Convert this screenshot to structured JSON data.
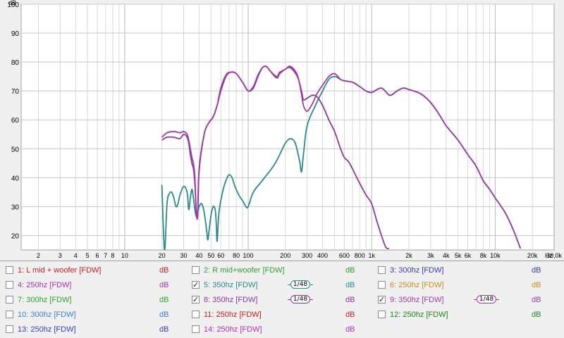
{
  "chart_data": {
    "type": "line",
    "ylabel": "dB",
    "xunit": "Hz",
    "xscale": "log",
    "xlim": [
      1.45,
      30000
    ],
    "ylim": [
      15,
      100
    ],
    "yticks": [
      20,
      30,
      40,
      50,
      60,
      70,
      80,
      90,
      100
    ],
    "xticks": [
      {
        "v": 2,
        "label": "2"
      },
      {
        "v": 3,
        "label": "3"
      },
      {
        "v": 4,
        "label": "4"
      },
      {
        "v": 5,
        "label": "5"
      },
      {
        "v": 6,
        "label": "6"
      },
      {
        "v": 7,
        "label": "7"
      },
      {
        "v": 8,
        "label": "8"
      },
      {
        "v": 10,
        "label": "10"
      },
      {
        "v": 20,
        "label": "20"
      },
      {
        "v": 30,
        "label": "30"
      },
      {
        "v": 40,
        "label": "40"
      },
      {
        "v": 50,
        "label": "50"
      },
      {
        "v": 60,
        "label": "60"
      },
      {
        "v": 80,
        "label": "80"
      },
      {
        "v": 100,
        "label": "100"
      },
      {
        "v": 200,
        "label": "200"
      },
      {
        "v": 300,
        "label": "300"
      },
      {
        "v": 400,
        "label": "400"
      },
      {
        "v": 600,
        "label": "600"
      },
      {
        "v": 800,
        "label": "800"
      },
      {
        "v": 1000,
        "label": "1k"
      },
      {
        "v": 2000,
        "label": "2k"
      },
      {
        "v": 3000,
        "label": "3k"
      },
      {
        "v": 4000,
        "label": "4k"
      },
      {
        "v": 5000,
        "label": "5k"
      },
      {
        "v": 6000,
        "label": "6k"
      },
      {
        "v": 8000,
        "label": "8k"
      },
      {
        "v": 10000,
        "label": "10k"
      },
      {
        "v": 20000,
        "label": "20k"
      },
      {
        "v": 30000,
        "label": "30,0k"
      }
    ],
    "xlast_label": "Hz",
    "grid": true,
    "series": [
      {
        "name": "5: 350hz [FDW]",
        "color": "#2a8a8a",
        "points": [
          [
            20,
            37.5
          ],
          [
            21,
            15
          ],
          [
            22,
            31
          ],
          [
            23,
            34.5
          ],
          [
            24,
            35
          ],
          [
            25,
            33
          ],
          [
            26,
            30
          ],
          [
            27,
            31
          ],
          [
            28,
            34
          ],
          [
            30,
            37
          ],
          [
            32,
            35
          ],
          [
            33,
            29
          ],
          [
            34,
            33
          ],
          [
            35,
            36
          ],
          [
            36,
            33
          ],
          [
            37,
            29
          ],
          [
            38,
            26.5
          ],
          [
            39,
            28
          ],
          [
            40,
            30
          ],
          [
            42,
            31
          ],
          [
            44,
            28
          ],
          [
            46,
            22
          ],
          [
            47,
            18.5
          ],
          [
            48,
            21
          ],
          [
            50,
            27
          ],
          [
            52,
            30
          ],
          [
            54,
            29
          ],
          [
            55,
            25
          ],
          [
            56,
            18
          ],
          [
            58,
            28
          ],
          [
            62,
            35
          ],
          [
            66,
            39
          ],
          [
            70,
            41
          ],
          [
            74,
            40
          ],
          [
            78,
            37
          ],
          [
            84,
            34
          ],
          [
            90,
            32
          ],
          [
            96,
            30
          ],
          [
            100,
            30
          ],
          [
            110,
            35
          ],
          [
            130,
            39
          ],
          [
            160,
            44
          ],
          [
            180,
            48
          ],
          [
            200,
            52
          ],
          [
            220,
            53.5
          ],
          [
            240,
            52
          ],
          [
            260,
            46
          ],
          [
            270,
            42
          ],
          [
            280,
            48
          ],
          [
            300,
            58
          ],
          [
            350,
            65
          ],
          [
            400,
            70
          ],
          [
            450,
            74
          ],
          [
            500,
            75
          ],
          [
            560,
            74
          ],
          [
            600,
            73.5
          ],
          [
            700,
            73
          ],
          [
            800,
            71.5
          ],
          [
            900,
            70
          ],
          [
            1000,
            69.5
          ],
          [
            1200,
            71
          ],
          [
            1400,
            68.5
          ],
          [
            1600,
            70
          ],
          [
            1800,
            71
          ],
          [
            2000,
            70.5
          ],
          [
            2500,
            69
          ],
          [
            3000,
            66
          ],
          [
            3500,
            62
          ],
          [
            4000,
            58
          ],
          [
            5000,
            53
          ],
          [
            6000,
            48
          ],
          [
            7000,
            44
          ],
          [
            8000,
            39
          ],
          [
            9000,
            36
          ],
          [
            10000,
            33
          ],
          [
            12000,
            28
          ],
          [
            14000,
            22
          ],
          [
            16000,
            15.5
          ]
        ]
      },
      {
        "name": "8: 350hz [FDW]",
        "color": "#8a3a9a",
        "points": [
          [
            20,
            53
          ],
          [
            22,
            54
          ],
          [
            25,
            54
          ],
          [
            28,
            53.5
          ],
          [
            30,
            55
          ],
          [
            32,
            54
          ],
          [
            33,
            52
          ],
          [
            34,
            48
          ],
          [
            35,
            45
          ],
          [
            36,
            43
          ],
          [
            37,
            38
          ],
          [
            38,
            28
          ],
          [
            39,
            27
          ],
          [
            40,
            42
          ],
          [
            44,
            55
          ],
          [
            48,
            59
          ],
          [
            52,
            61
          ],
          [
            56,
            65
          ],
          [
            60,
            70
          ],
          [
            66,
            75
          ],
          [
            72,
            76.5
          ],
          [
            80,
            76
          ],
          [
            90,
            73
          ],
          [
            100,
            70
          ],
          [
            110,
            71
          ],
          [
            120,
            75
          ],
          [
            130,
            78
          ],
          [
            140,
            78.5
          ],
          [
            150,
            77
          ],
          [
            170,
            74.5
          ],
          [
            180,
            76
          ],
          [
            200,
            77.5
          ],
          [
            220,
            78
          ],
          [
            250,
            75
          ],
          [
            270,
            70
          ],
          [
            280,
            67
          ],
          [
            300,
            67.5
          ],
          [
            330,
            68.5
          ],
          [
            360,
            68
          ],
          [
            400,
            65
          ],
          [
            450,
            60
          ],
          [
            500,
            56
          ],
          [
            560,
            50
          ],
          [
            600,
            47
          ],
          [
            650,
            45.5
          ],
          [
            700,
            43
          ],
          [
            800,
            38
          ],
          [
            900,
            34
          ],
          [
            1000,
            31
          ],
          [
            1100,
            25
          ],
          [
            1200,
            20
          ],
          [
            1300,
            16
          ],
          [
            1380,
            15.5
          ]
        ]
      },
      {
        "name": "9: 350hz [FDW]",
        "color": "#a03aa8",
        "points": [
          [
            20,
            54
          ],
          [
            22,
            55.5
          ],
          [
            25,
            56
          ],
          [
            28,
            55.5
          ],
          [
            30,
            56
          ],
          [
            32,
            55
          ],
          [
            33,
            53
          ],
          [
            34,
            50
          ],
          [
            35,
            47
          ],
          [
            36,
            45
          ],
          [
            37,
            40
          ],
          [
            38,
            28
          ],
          [
            39,
            27
          ],
          [
            40,
            43
          ],
          [
            44,
            55
          ],
          [
            48,
            59
          ],
          [
            52,
            61
          ],
          [
            56,
            65
          ],
          [
            60,
            71
          ],
          [
            66,
            75.5
          ],
          [
            72,
            76.5
          ],
          [
            80,
            76
          ],
          [
            90,
            73
          ],
          [
            100,
            70
          ],
          [
            110,
            71.5
          ],
          [
            120,
            75.5
          ],
          [
            130,
            78
          ],
          [
            140,
            78.5
          ],
          [
            150,
            77
          ],
          [
            170,
            75
          ],
          [
            180,
            76.5
          ],
          [
            200,
            77.5
          ],
          [
            220,
            78.5
          ],
          [
            250,
            75.5
          ],
          [
            270,
            69
          ],
          [
            280,
            65
          ],
          [
            300,
            63
          ],
          [
            330,
            65.5
          ],
          [
            360,
            69
          ],
          [
            400,
            72
          ],
          [
            450,
            75
          ],
          [
            500,
            76
          ],
          [
            560,
            74
          ],
          [
            600,
            73.5
          ],
          [
            700,
            73
          ],
          [
            800,
            71.5
          ],
          [
            900,
            70
          ],
          [
            1000,
            69.5
          ],
          [
            1200,
            71
          ],
          [
            1400,
            68.5
          ],
          [
            1600,
            70
          ],
          [
            1800,
            71
          ],
          [
            2000,
            70.5
          ],
          [
            2500,
            69
          ],
          [
            3000,
            66
          ],
          [
            3500,
            62
          ],
          [
            4000,
            58
          ],
          [
            5000,
            53
          ],
          [
            6000,
            48
          ],
          [
            7000,
            44
          ],
          [
            8000,
            39
          ],
          [
            9000,
            36
          ],
          [
            10000,
            33
          ],
          [
            12000,
            28
          ],
          [
            14000,
            22
          ],
          [
            16000,
            15.5
          ]
        ]
      }
    ]
  },
  "legend": [
    {
      "label": "1: L mid + woofer [FDW]",
      "unit": "dB",
      "color": "#c02020",
      "checked": false,
      "smoothing": ""
    },
    {
      "label": "2: R mid+woofer [FDW]",
      "unit": "dB",
      "color": "#30a030",
      "checked": false,
      "smoothing": ""
    },
    {
      "label": "3: 300hz [FDW]",
      "unit": "dB",
      "color": "#3a3ab0",
      "checked": false,
      "smoothing": ""
    },
    {
      "label": "4: 250hz [FDW]",
      "unit": "dB",
      "color": "#b030b0",
      "checked": false,
      "smoothing": ""
    },
    {
      "label": "5: 350hz [FDW]",
      "unit": "dB",
      "color": "#2a8a8a",
      "checked": true,
      "smoothing": "1/48"
    },
    {
      "label": "6: 250hz [FDW]",
      "unit": "dB",
      "color": "#c09020",
      "checked": false,
      "smoothing": ""
    },
    {
      "label": "7: 300hz [FDW]",
      "unit": "dB",
      "color": "#30a030",
      "checked": false,
      "smoothing": ""
    },
    {
      "label": "8: 350hz [FDW]",
      "unit": "dB",
      "color": "#8a3a9a",
      "checked": true,
      "smoothing": "1/48"
    },
    {
      "label": "9: 350hz [FDW]",
      "unit": "dB",
      "color": "#a03aa8",
      "checked": true,
      "smoothing": "1/48"
    },
    {
      "label": "10: 300hz [FDW]",
      "unit": "dB",
      "color": "#4080c0",
      "checked": false,
      "smoothing": ""
    },
    {
      "label": "11: 250hz [FDW]",
      "unit": "dB",
      "color": "#c02020",
      "checked": false,
      "smoothing": ""
    },
    {
      "label": "12: 250hz [FDW]",
      "unit": "dB",
      "color": "#208020",
      "checked": false,
      "smoothing": ""
    },
    {
      "label": "13: 250hz [FDW]",
      "unit": "dB",
      "color": "#3a3ab0",
      "checked": false,
      "smoothing": ""
    },
    {
      "label": "14: 250hz [FDW]",
      "unit": "dB",
      "color": "#b030b0",
      "checked": false,
      "smoothing": ""
    }
  ]
}
